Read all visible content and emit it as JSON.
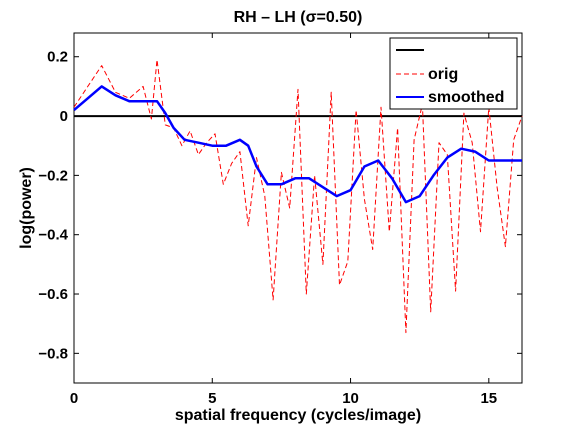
{
  "chart_data": {
    "type": "line",
    "title": "RH – LH (σ=0.50)",
    "xlabel": "spatial frequency (cycles/image)",
    "ylabel": "log(power)",
    "xlim": [
      0,
      16.2
    ],
    "ylim": [
      -0.9,
      0.28
    ],
    "xticks": [
      0,
      5,
      10,
      15
    ],
    "xtick_labels": [
      "0",
      "5",
      "10",
      "15"
    ],
    "yticks": [
      0.2,
      0,
      -0.2,
      -0.4,
      -0.6,
      -0.8
    ],
    "ytick_labels": [
      "0.2",
      "0",
      "−0.2",
      "−0.4",
      "−0.6",
      "−0.8"
    ],
    "grid": false,
    "legend_position": "top-right",
    "legend_labels": [
      "",
      "orig",
      "smoothed"
    ],
    "series": [
      {
        "name": "",
        "color": "#000000",
        "style": "solid",
        "x": [
          0,
          16.2
        ],
        "y": [
          0,
          0
        ]
      },
      {
        "name": "orig",
        "color": "#ff0000",
        "style": "dashed",
        "x": [
          0,
          0.5,
          1.0,
          1.5,
          2.0,
          2.5,
          2.8,
          3.0,
          3.3,
          3.6,
          3.9,
          4.2,
          4.5,
          4.8,
          5.1,
          5.4,
          5.7,
          6.0,
          6.3,
          6.6,
          6.9,
          7.2,
          7.5,
          7.8,
          8.1,
          8.4,
          8.7,
          9.0,
          9.3,
          9.6,
          9.9,
          10.2,
          10.5,
          10.8,
          11.1,
          11.4,
          11.7,
          12.0,
          12.3,
          12.6,
          12.9,
          13.2,
          13.5,
          13.8,
          14.1,
          14.4,
          14.7,
          15.0,
          15.3,
          15.6,
          15.9,
          16.2
        ],
        "y": [
          0.03,
          0.1,
          0.17,
          0.08,
          0.06,
          0.1,
          -0.01,
          0.19,
          -0.03,
          -0.04,
          -0.1,
          -0.05,
          -0.13,
          -0.09,
          -0.06,
          -0.23,
          -0.16,
          -0.12,
          -0.37,
          -0.14,
          -0.27,
          -0.62,
          -0.19,
          -0.31,
          0.09,
          -0.6,
          -0.2,
          -0.5,
          0.08,
          -0.57,
          -0.49,
          0.02,
          -0.28,
          -0.45,
          0.03,
          -0.39,
          -0.04,
          -0.73,
          -0.08,
          0.04,
          -0.66,
          -0.09,
          -0.13,
          -0.59,
          0.01,
          -0.09,
          -0.39,
          0.03,
          -0.24,
          -0.44,
          -0.08,
          0.0
        ]
      },
      {
        "name": "smoothed",
        "color": "#0000ff",
        "style": "solid",
        "x": [
          0,
          0.5,
          1.0,
          1.5,
          2.0,
          2.5,
          3.0,
          3.3,
          3.6,
          4.0,
          4.5,
          5.0,
          5.5,
          6.0,
          6.3,
          6.6,
          7.0,
          7.5,
          8.0,
          8.5,
          9.0,
          9.5,
          10.0,
          10.5,
          11.0,
          11.5,
          12.0,
          12.5,
          13.0,
          13.5,
          14.0,
          14.5,
          15.0,
          15.5,
          16.2
        ],
        "y": [
          0.02,
          0.06,
          0.1,
          0.07,
          0.05,
          0.05,
          0.05,
          0.01,
          -0.04,
          -0.08,
          -0.09,
          -0.1,
          -0.1,
          -0.08,
          -0.1,
          -0.17,
          -0.23,
          -0.23,
          -0.21,
          -0.21,
          -0.24,
          -0.27,
          -0.25,
          -0.17,
          -0.15,
          -0.21,
          -0.29,
          -0.27,
          -0.2,
          -0.14,
          -0.11,
          -0.12,
          -0.15,
          -0.15,
          -0.15
        ]
      }
    ]
  }
}
